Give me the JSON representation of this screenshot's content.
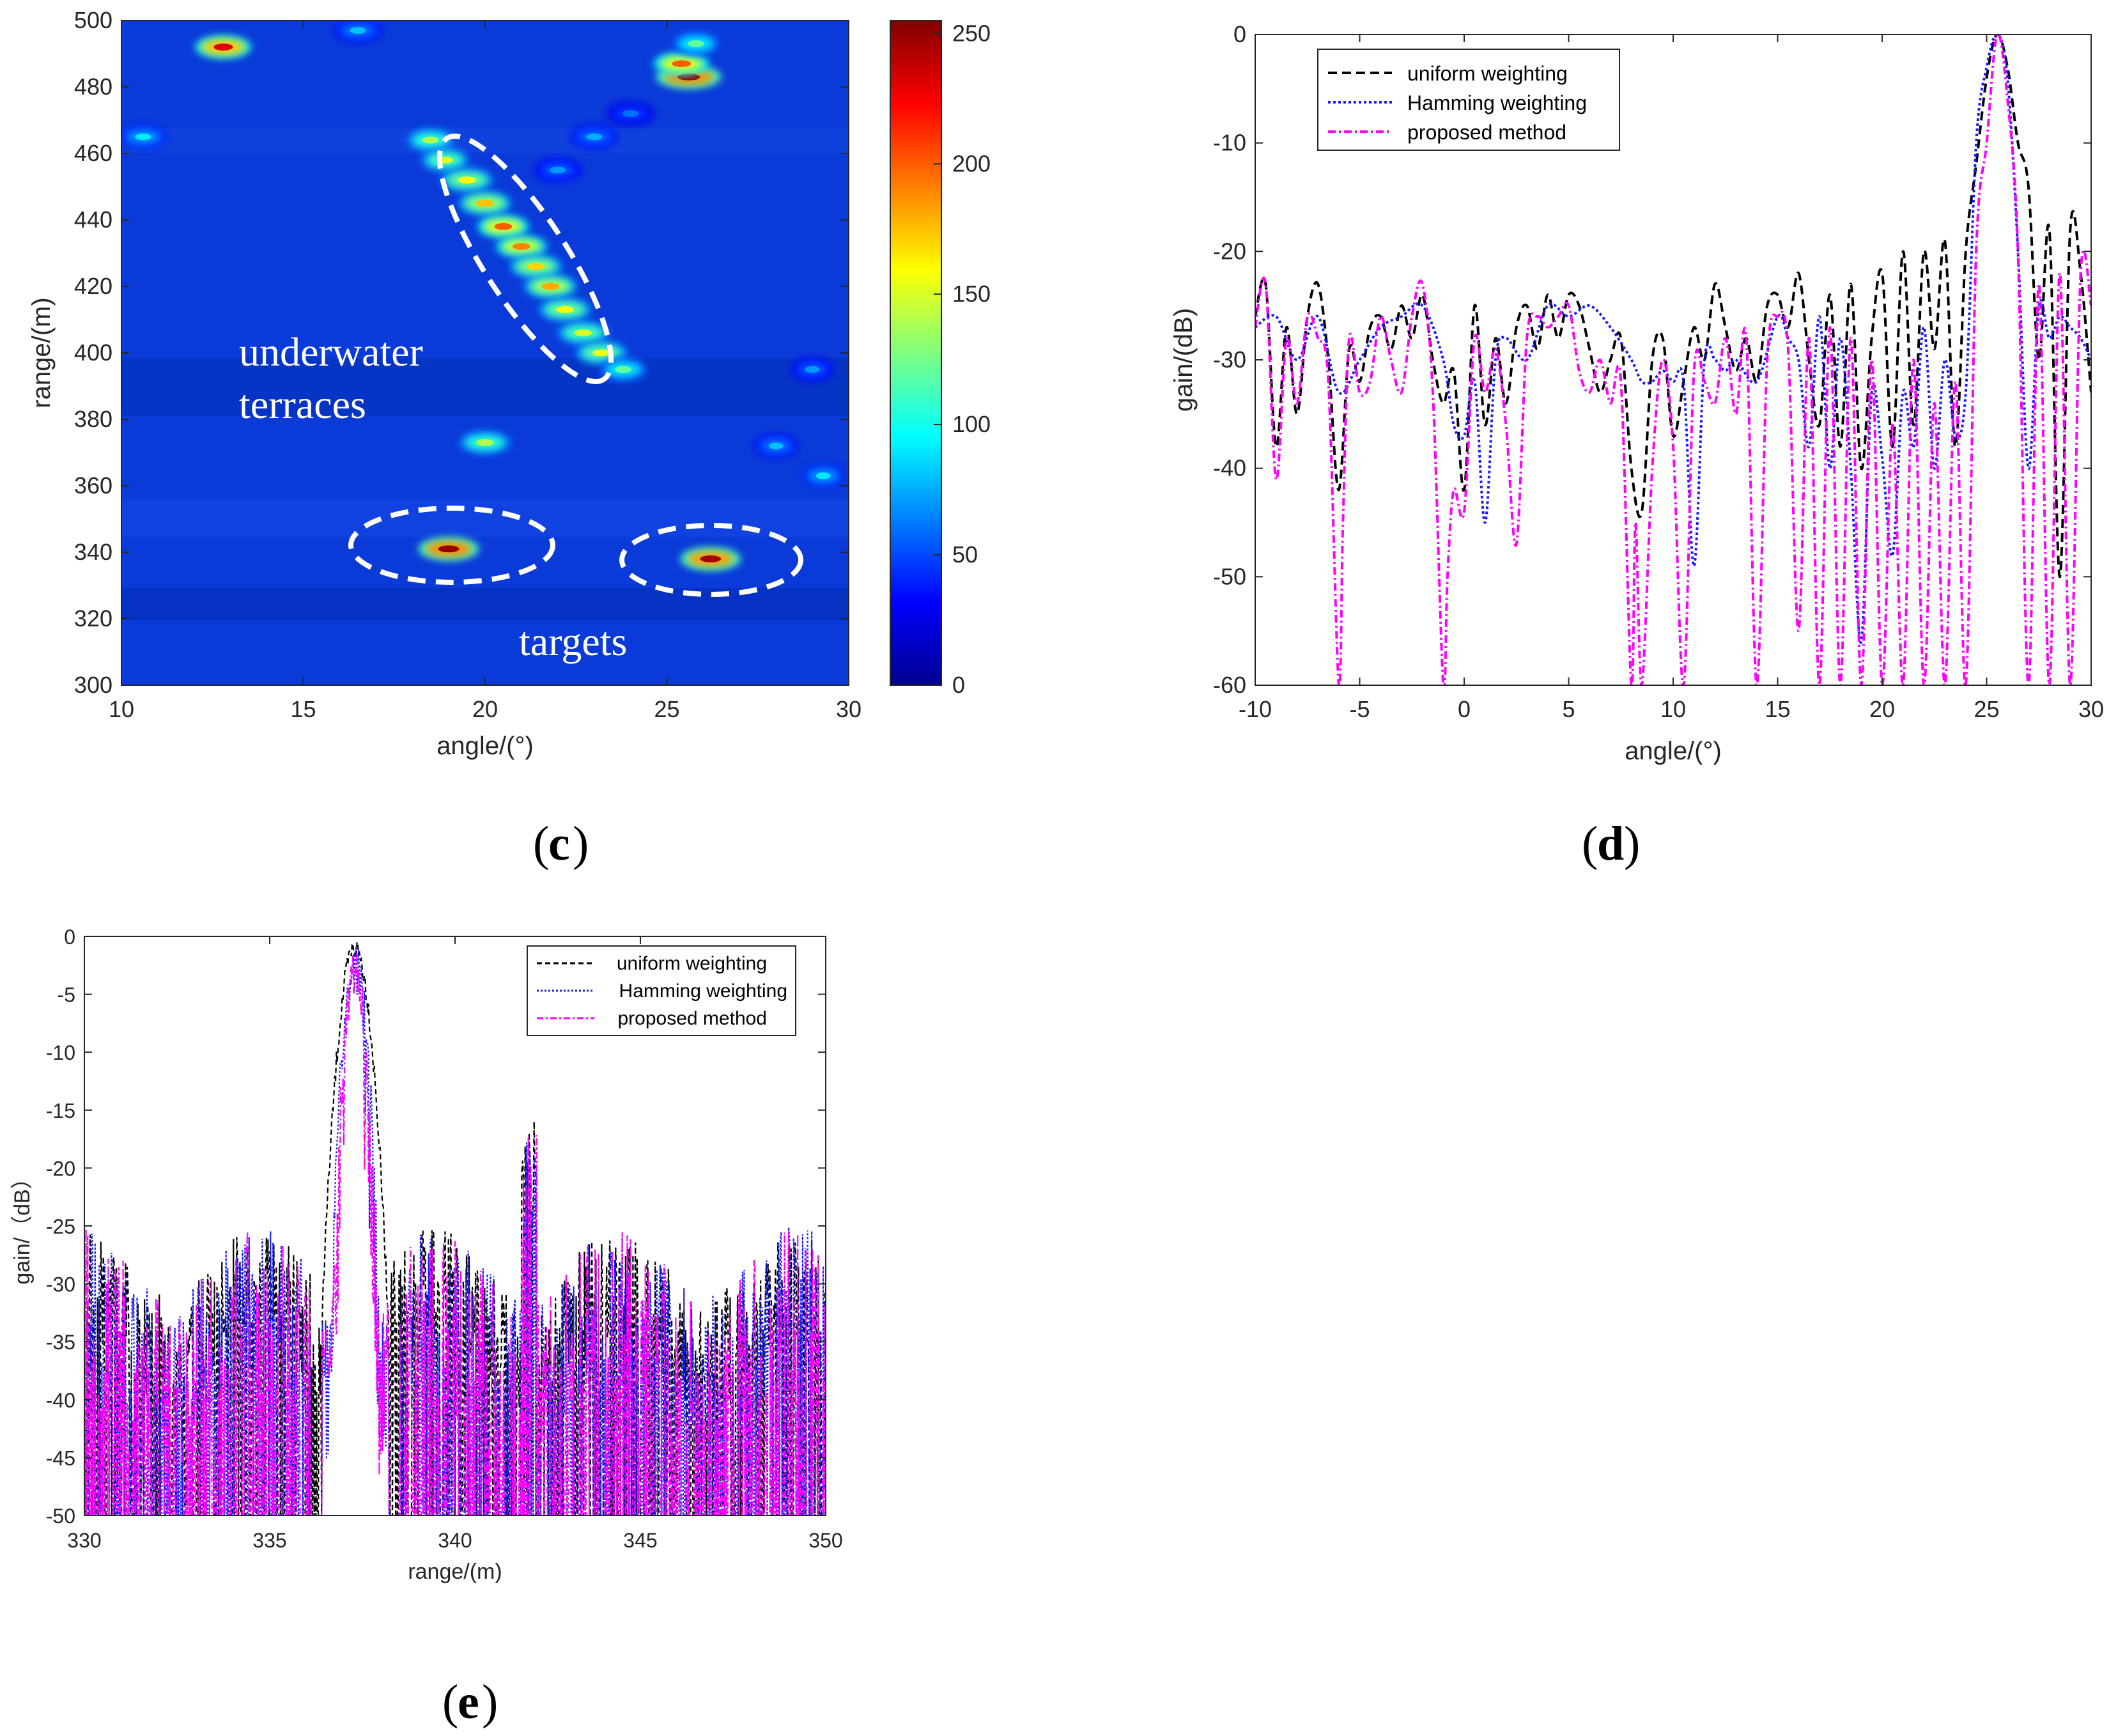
{
  "panels": {
    "c": {
      "label": "c",
      "annotations": {
        "terraces_line1": "underwater",
        "terraces_line2": "terraces",
        "targets": "targets"
      }
    },
    "d": {
      "label": "d"
    },
    "e": {
      "label": "e"
    }
  },
  "colors": {
    "uniform": "#000000",
    "hamming": "#1a1aff",
    "proposed": "#ff00ff",
    "heatmap_bg": "#0a3ad8"
  },
  "chart_data": [
    {
      "id": "c",
      "type": "heatmap",
      "xlabel": "angle/(°)",
      "ylabel": "range/(m)",
      "xlim": [
        10,
        30
      ],
      "ylim": [
        300,
        500
      ],
      "xticks": [
        10,
        15,
        20,
        25,
        30
      ],
      "yticks": [
        300,
        320,
        340,
        360,
        380,
        400,
        420,
        440,
        460,
        480,
        500
      ],
      "colorbar": {
        "min": 0,
        "max": 255,
        "ticks": [
          0,
          50,
          100,
          150,
          200,
          250
        ]
      },
      "blobs": [
        {
          "angle": 12.8,
          "range": 492,
          "value": 230,
          "w": 1.2
        },
        {
          "angle": 25.6,
          "range": 483,
          "value": 250,
          "w": 1.4
        },
        {
          "angle": 25.4,
          "range": 487,
          "value": 200,
          "w": 1.2
        },
        {
          "angle": 25.8,
          "range": 493,
          "value": 120,
          "w": 1.0
        },
        {
          "angle": 16.5,
          "range": 497,
          "value": 80,
          "w": 1.0
        },
        {
          "angle": 10.6,
          "range": 465,
          "value": 90,
          "w": 1.0
        },
        {
          "angle": 18.5,
          "range": 464,
          "value": 140,
          "w": 1.0
        },
        {
          "angle": 18.9,
          "range": 458,
          "value": 150,
          "w": 1.0
        },
        {
          "angle": 19.5,
          "range": 452,
          "value": 160,
          "w": 1.1
        },
        {
          "angle": 20.0,
          "range": 445,
          "value": 175,
          "w": 1.1
        },
        {
          "angle": 20.5,
          "range": 438,
          "value": 200,
          "w": 1.1
        },
        {
          "angle": 21.0,
          "range": 432,
          "value": 190,
          "w": 1.1
        },
        {
          "angle": 21.4,
          "range": 426,
          "value": 170,
          "w": 1.1
        },
        {
          "angle": 21.8,
          "range": 420,
          "value": 180,
          "w": 1.1
        },
        {
          "angle": 22.2,
          "range": 413,
          "value": 160,
          "w": 1.1
        },
        {
          "angle": 22.7,
          "range": 406,
          "value": 150,
          "w": 1.1
        },
        {
          "angle": 23.2,
          "range": 400,
          "value": 155,
          "w": 1.1
        },
        {
          "angle": 23.8,
          "range": 395,
          "value": 120,
          "w": 1.0
        },
        {
          "angle": 20.0,
          "range": 373,
          "value": 140,
          "w": 1.1
        },
        {
          "angle": 19.0,
          "range": 341,
          "value": 250,
          "w": 1.3
        },
        {
          "angle": 26.2,
          "range": 338,
          "value": 245,
          "w": 1.3
        },
        {
          "angle": 29.3,
          "range": 363,
          "value": 90,
          "w": 0.9
        },
        {
          "angle": 28.0,
          "range": 372,
          "value": 80,
          "w": 0.9
        },
        {
          "angle": 29.0,
          "range": 395,
          "value": 70,
          "w": 0.9
        },
        {
          "angle": 22.0,
          "range": 455,
          "value": 70,
          "w": 1.0
        },
        {
          "angle": 23.0,
          "range": 465,
          "value": 75,
          "w": 1.0
        },
        {
          "angle": 24.0,
          "range": 472,
          "value": 60,
          "w": 1.0
        }
      ]
    },
    {
      "id": "d",
      "type": "line",
      "xlabel": "angle/(°)",
      "ylabel": "gain/(dB)",
      "xlim": [
        -10,
        30
      ],
      "ylim": [
        -60,
        0
      ],
      "xticks": [
        -10,
        -5,
        0,
        5,
        10,
        15,
        20,
        25,
        30
      ],
      "yticks": [
        0,
        -10,
        -20,
        -30,
        -40,
        -50,
        -60
      ],
      "legend": [
        "uniform weighting",
        "Hamming weighting",
        "proposed method"
      ],
      "series": [
        {
          "name": "uniform weighting",
          "color": "#000000",
          "dash": "14,8",
          "x": [
            -10,
            -9.5,
            -9,
            -8.5,
            -8,
            -7.5,
            -7,
            -6.5,
            -6,
            -5.5,
            -5,
            -4.5,
            -4,
            -3.5,
            -3,
            -2.5,
            -2,
            -1.5,
            -1,
            -0.5,
            0,
            0.5,
            1,
            1.5,
            2,
            2.5,
            3,
            3.5,
            4,
            4.5,
            5,
            5.5,
            6,
            6.5,
            7,
            7.5,
            8,
            8.5,
            9,
            9.5,
            10,
            10.5,
            11,
            11.5,
            12,
            12.5,
            13,
            13.5,
            14,
            14.5,
            15,
            15.5,
            16,
            16.5,
            17,
            17.5,
            18,
            18.5,
            19,
            19.5,
            20,
            20.5,
            21,
            21.5,
            22,
            22.5,
            23,
            23.5,
            24,
            24.5,
            25,
            25.5,
            26,
            26.5,
            27,
            27.5,
            28,
            28.5,
            29,
            29.5,
            30
          ],
          "y": [
            -26,
            -23,
            -38,
            -27,
            -35,
            -26,
            -23,
            -30,
            -42,
            -29,
            -32,
            -27,
            -26,
            -29,
            -25,
            -28,
            -24,
            -30,
            -34,
            -31,
            -42,
            -25,
            -36,
            -28,
            -34,
            -27,
            -25,
            -29,
            -24,
            -28,
            -24,
            -25,
            -29,
            -33,
            -30,
            -28,
            -40,
            -44,
            -30,
            -28,
            -37,
            -32,
            -27,
            -30,
            -23,
            -27,
            -31,
            -28,
            -32,
            -25,
            -24,
            -27,
            -22,
            -30,
            -36,
            -24,
            -38,
            -23,
            -40,
            -28,
            -22,
            -38,
            -20,
            -36,
            -20,
            -29,
            -19,
            -38,
            -20,
            -12,
            -4,
            0,
            -3,
            -10,
            -14,
            -30,
            -18,
            -50,
            -18,
            -22,
            -33
          ]
        },
        {
          "name": "Hamming weighting",
          "color": "#1a1aff",
          "dash": "4,4",
          "x": [
            -10,
            -9,
            -8,
            -7,
            -6,
            -5,
            -4,
            -3,
            -2,
            -1,
            -0.5,
            0,
            0.5,
            1,
            1.5,
            2,
            3,
            4,
            5,
            6,
            7,
            8,
            8.5,
            9,
            9.5,
            10,
            10.5,
            11,
            11.5,
            12,
            12.5,
            13,
            14,
            15,
            15.5,
            16,
            16.5,
            17,
            17.5,
            18,
            18.5,
            19,
            19.5,
            20,
            20.5,
            21,
            21.5,
            22,
            22.5,
            23,
            23.5,
            24,
            24.5,
            25,
            25.5,
            26,
            26.5,
            27,
            27.5,
            28,
            28.5,
            29,
            29.5,
            30
          ],
          "y": [
            -27,
            -26,
            -30,
            -26,
            -33,
            -30,
            -27,
            -26,
            -25,
            -30,
            -36,
            -37,
            -32,
            -45,
            -30,
            -28,
            -30,
            -25,
            -26,
            -25,
            -27,
            -30,
            -32,
            -32,
            -31,
            -32,
            -32,
            -49,
            -30,
            -30,
            -31,
            -30,
            -32,
            -26,
            -28,
            -30,
            -38,
            -26,
            -40,
            -28,
            -40,
            -56,
            -33,
            -39,
            -48,
            -33,
            -38,
            -27,
            -40,
            -30,
            -37,
            -33,
            -10,
            -3,
            0,
            -4,
            -20,
            -40,
            -25,
            -28,
            -26,
            -27,
            -28,
            -30
          ]
        },
        {
          "name": "proposed method",
          "color": "#ff00ff",
          "dash": "12,5,3,5",
          "x": [
            -10,
            -9.5,
            -9,
            -8.5,
            -8,
            -7.5,
            -7,
            -6.5,
            -6,
            -5.8,
            -5.5,
            -5,
            -4.5,
            -4,
            -3.5,
            -3,
            -2.5,
            -2,
            -1.5,
            -1,
            -0.8,
            -0.5,
            0,
            0.5,
            1,
            1.5,
            2,
            2.5,
            3,
            3.5,
            4,
            4.5,
            5,
            5.5,
            6,
            6.5,
            7,
            7.5,
            8,
            8.2,
            8.5,
            9,
            9.5,
            10,
            10.5,
            11,
            11.5,
            12,
            12.5,
            13,
            13.5,
            14,
            14.5,
            15,
            15.5,
            16,
            16.5,
            17,
            17.5,
            18,
            18.5,
            19,
            19.5,
            20,
            20.5,
            21,
            21.5,
            22,
            22.5,
            23,
            23.5,
            24,
            24.5,
            25,
            25.5,
            26,
            26.5,
            27,
            27.5,
            28,
            28.5,
            29,
            29.5,
            30
          ],
          "y": [
            -27,
            -23,
            -41,
            -28,
            -34,
            -26,
            -28,
            -32,
            -60,
            -45,
            -28,
            -33,
            -32,
            -26,
            -30,
            -33,
            -26,
            -23,
            -33,
            -60,
            -50,
            -42,
            -44,
            -28,
            -33,
            -29,
            -36,
            -47,
            -28,
            -26,
            -27,
            -26,
            -25,
            -31,
            -33,
            -30,
            -34,
            -32,
            -60,
            -45,
            -60,
            -40,
            -30,
            -38,
            -60,
            -31,
            -32,
            -34,
            -28,
            -35,
            -28,
            -60,
            -30,
            -26,
            -29,
            -55,
            -28,
            -60,
            -27,
            -60,
            -28,
            -60,
            -30,
            -60,
            -36,
            -60,
            -30,
            -60,
            -34,
            -60,
            -32,
            -60,
            -20,
            -10,
            0,
            -6,
            -20,
            -60,
            -23,
            -60,
            -22,
            -60,
            -22,
            -25
          ]
        }
      ]
    },
    {
      "id": "e",
      "type": "line",
      "xlabel": "range/(m)",
      "ylabel": "gain/（dB）",
      "xlim": [
        330,
        350
      ],
      "ylim": [
        -50,
        0
      ],
      "xticks": [
        330,
        335,
        340,
        345,
        350
      ],
      "yticks": [
        0,
        -5,
        -10,
        -15,
        -20,
        -25,
        -30,
        -35,
        -40,
        -45,
        -50
      ],
      "legend": [
        "uniform weighting",
        "Hamming weighting",
        "proposed method"
      ],
      "peak": {
        "range": 337.3,
        "gain": 0
      },
      "secondary_peak": {
        "range": 342.0,
        "gain": -18.5
      },
      "series": [
        {
          "name": "uniform weighting",
          "color": "#000000",
          "dash": "8,5"
        },
        {
          "name": "Hamming weighting",
          "color": "#1a1aff",
          "dash": "3,3"
        },
        {
          "name": "proposed method",
          "color": "#ff00ff",
          "dash": "10,4,3,4"
        }
      ]
    }
  ]
}
